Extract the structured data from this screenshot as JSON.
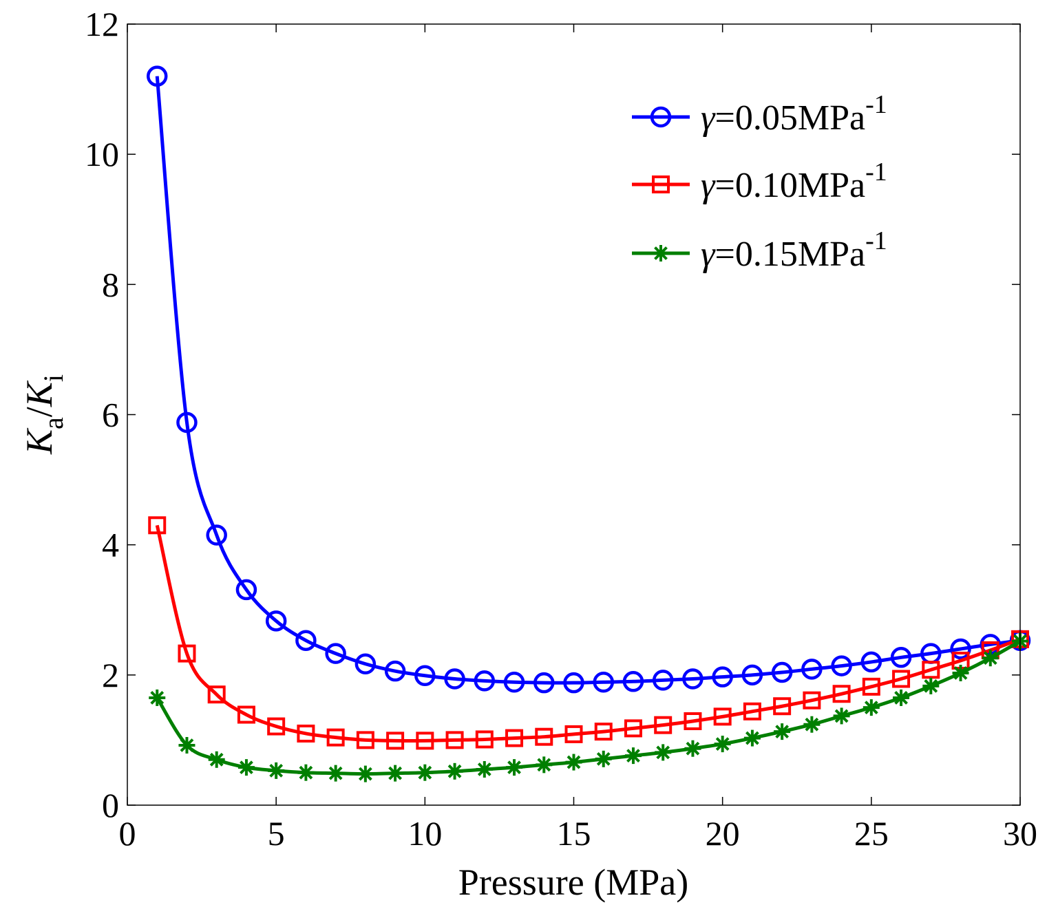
{
  "chart_data": {
    "type": "line",
    "title": "",
    "xlabel": "Pressure (MPa)",
    "ylabel": {
      "main1": "K",
      "sub1": "a",
      "slash": "/",
      "main2": "K",
      "sub2": "i"
    },
    "xlim": [
      0,
      30
    ],
    "ylim": [
      0,
      12
    ],
    "xticks": [
      0,
      5,
      10,
      15,
      20,
      25,
      30
    ],
    "yticks": [
      0,
      2,
      4,
      6,
      8,
      10,
      12
    ],
    "grid": false,
    "legend_position": "top-right",
    "x": [
      1,
      2,
      3,
      4,
      5,
      6,
      7,
      8,
      9,
      10,
      11,
      12,
      13,
      14,
      15,
      16,
      17,
      18,
      19,
      20,
      21,
      22,
      23,
      24,
      25,
      26,
      27,
      28,
      29,
      30
    ],
    "series": [
      {
        "name": "γ=0.05MPa-1",
        "legend": {
          "symbol": "γ",
          "text": "=0.05MPa",
          "sup": "-1"
        },
        "color": "#0000ff",
        "marker": "circle",
        "values": [
          11.2,
          5.88,
          4.15,
          3.31,
          2.83,
          2.53,
          2.33,
          2.17,
          2.06,
          1.99,
          1.94,
          1.91,
          1.89,
          1.88,
          1.88,
          1.89,
          1.9,
          1.92,
          1.94,
          1.97,
          2.0,
          2.04,
          2.09,
          2.14,
          2.2,
          2.27,
          2.33,
          2.4,
          2.47,
          2.53
        ]
      },
      {
        "name": "γ=0.10MPa-1",
        "legend": {
          "symbol": "γ",
          "text": "=0.10MPa",
          "sup": "-1"
        },
        "color": "#ff0000",
        "marker": "square",
        "values": [
          4.3,
          2.33,
          1.7,
          1.39,
          1.21,
          1.1,
          1.04,
          1.0,
          0.99,
          0.99,
          1.0,
          1.01,
          1.03,
          1.05,
          1.09,
          1.13,
          1.18,
          1.23,
          1.29,
          1.36,
          1.44,
          1.52,
          1.61,
          1.71,
          1.82,
          1.94,
          2.08,
          2.22,
          2.38,
          2.55
        ]
      },
      {
        "name": "γ=0.15MPa-1",
        "legend": {
          "symbol": "γ",
          "text": "=0.15MPa",
          "sup": "-1"
        },
        "color": "#007f00",
        "marker": "star",
        "values": [
          1.65,
          0.92,
          0.7,
          0.58,
          0.53,
          0.5,
          0.49,
          0.48,
          0.49,
          0.5,
          0.52,
          0.55,
          0.58,
          0.62,
          0.66,
          0.71,
          0.76,
          0.81,
          0.87,
          0.94,
          1.03,
          1.13,
          1.24,
          1.37,
          1.5,
          1.65,
          1.83,
          2.03,
          2.26,
          2.52
        ]
      }
    ]
  }
}
